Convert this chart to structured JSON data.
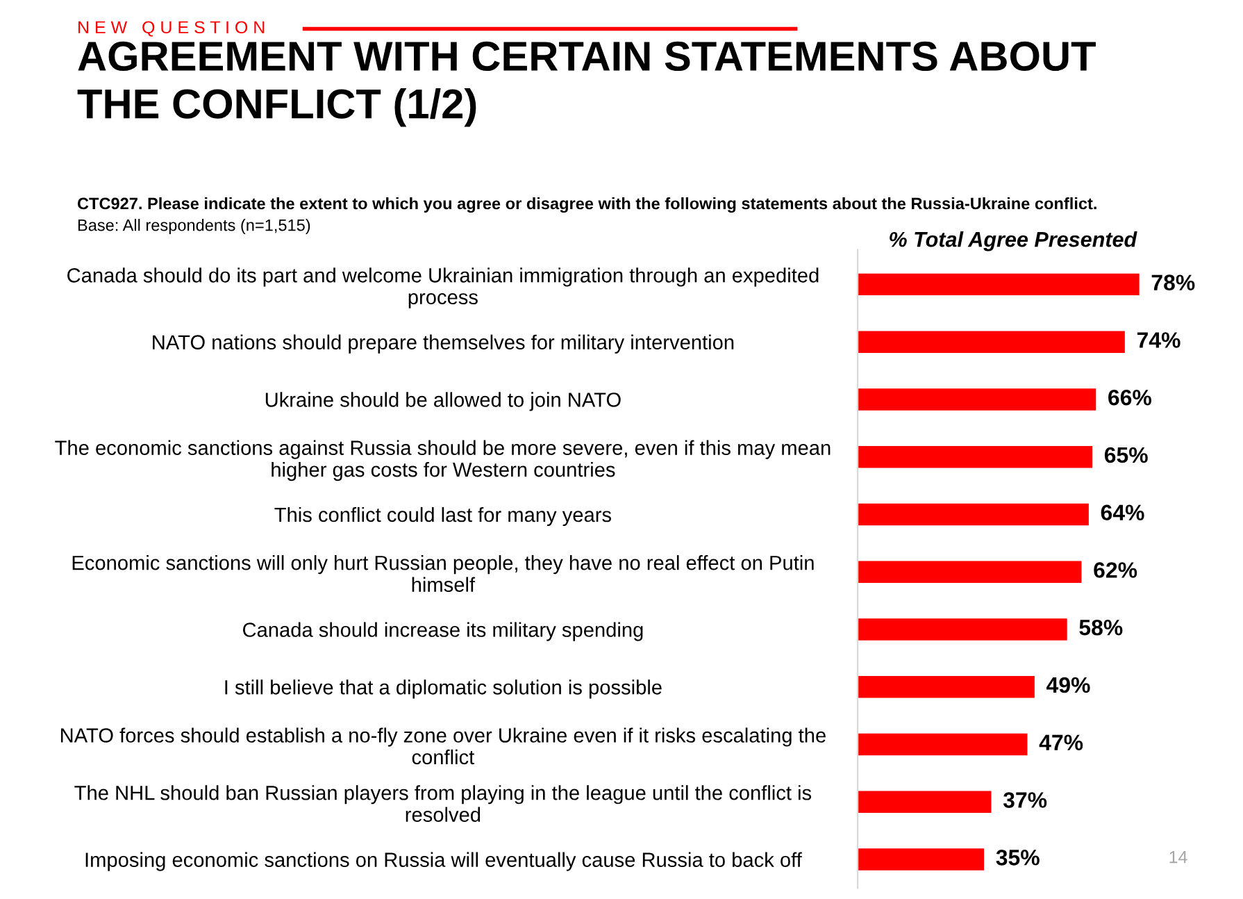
{
  "chart_data": {
    "type": "bar",
    "orientation": "horizontal",
    "title": "AGREEMENT WITH CERTAIN STATEMENTS ABOUT\nTHE CONFLICT (1/2)",
    "subtitle": "CTC927. Please indicate the extent to which you agree or disagree with the following statements about the Russia-Ukraine conflict.",
    "xlabel": "% Total Agree Presented",
    "annotations": [
      "N E W   Q U E S T I O N",
      "Base: All respondents (n=1,515)",
      "14"
    ],
    "categories": [
      "Canada should do its part and welcome Ukrainian immigration through an expedited\nprocess",
      "NATO nations should prepare themselves for military intervention",
      "Ukraine should be allowed to join NATO",
      "The economic sanctions against Russia should be more severe, even if this may mean\nhigher gas costs for Western countries",
      "This conflict could last for many years",
      "Economic sanctions will only hurt Russian people, they have no real effect on Putin\nhimself",
      "Canada should increase its military spending",
      "I still believe that a diplomatic solution is possible",
      "NATO forces should establish a no-fly zone over Ukraine even if it risks escalating the\nconflict",
      "The NHL should ban Russian players from playing in the league until the conflict is\nresolved",
      "Imposing economic sanctions on Russia will eventually cause Russia to back off"
    ],
    "values": [
      78,
      74,
      66,
      65,
      64,
      62,
      58,
      49,
      47,
      37,
      35
    ],
    "value_labels": [
      "78%",
      "74%",
      "66%",
      "65%",
      "64%",
      "62%",
      "58%",
      "49%",
      "47%",
      "37%",
      "35%"
    ],
    "color": "#ff0000",
    "legend": false,
    "grid": false
  }
}
